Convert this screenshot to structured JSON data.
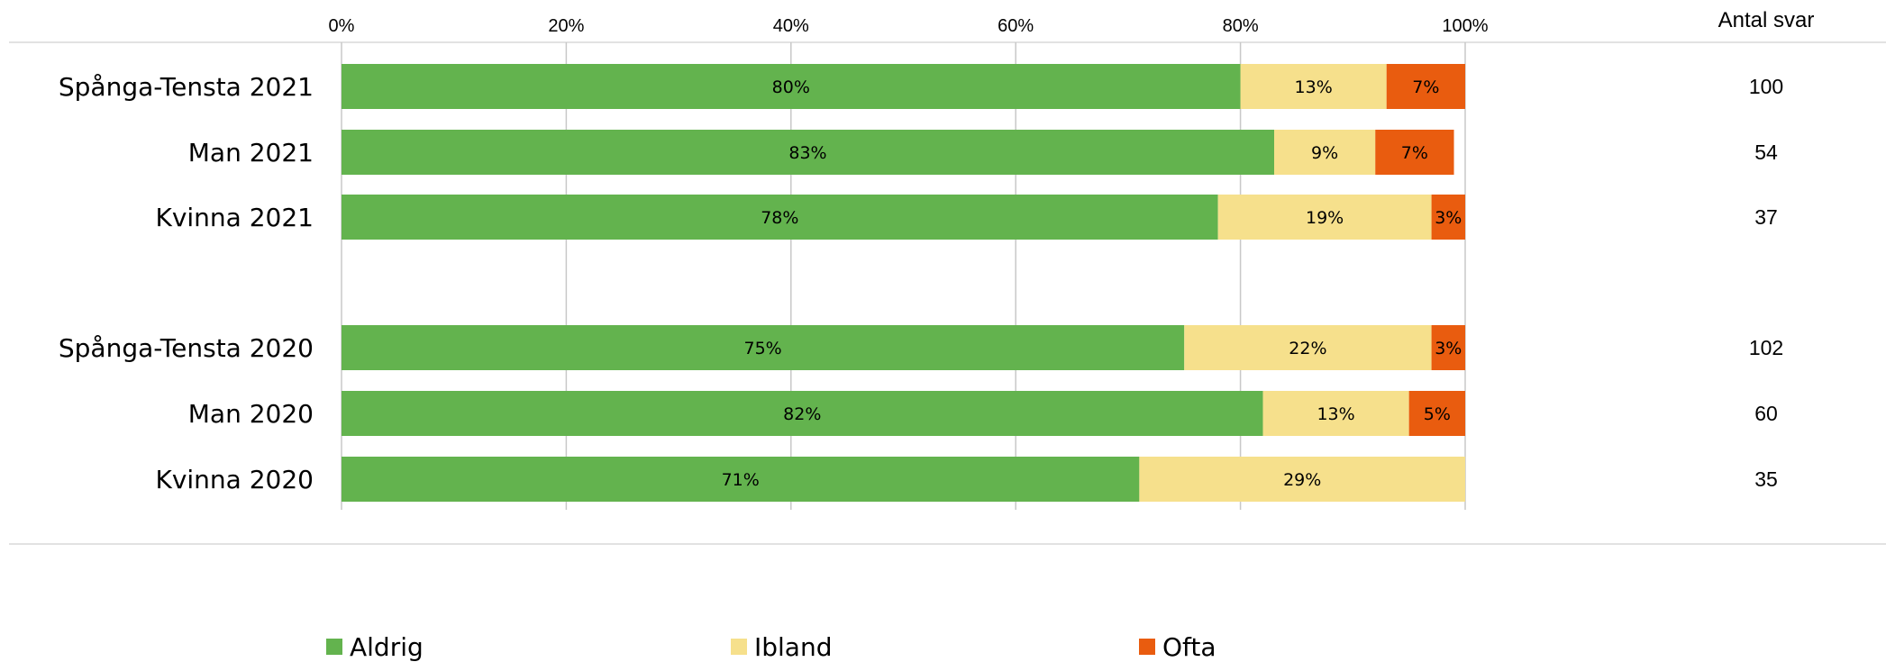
{
  "chart_data": {
    "type": "bar",
    "orientation": "horizontal",
    "stacked": "percent",
    "xlim": [
      0,
      100
    ],
    "x_ticks": [
      "0%",
      "20%",
      "40%",
      "60%",
      "80%",
      "100%"
    ],
    "grid": true,
    "legend_position": "bottom",
    "categories": [
      "Spånga-Tensta 2021",
      "Man 2021",
      "Kvinna 2021",
      "",
      "Spånga-Tensta 2020",
      "Man 2020",
      "Kvinna 2020"
    ],
    "series": [
      {
        "name": "Aldrig",
        "color": "#63b34e",
        "values": [
          80,
          83,
          78,
          null,
          75,
          82,
          71
        ]
      },
      {
        "name": "Ibland",
        "color": "#f6e08c",
        "values": [
          13,
          9,
          19,
          null,
          22,
          13,
          29
        ]
      },
      {
        "name": "Ofta",
        "color": "#e95c0f",
        "values": [
          7,
          7,
          3,
          null,
          3,
          5,
          0
        ]
      }
    ],
    "data_labels": [
      [
        "80%",
        "13%",
        "7%"
      ],
      [
        "83%",
        "9%",
        "7%"
      ],
      [
        "78%",
        "19%",
        "3%"
      ],
      null,
      [
        "75%",
        "22%",
        "3%"
      ],
      [
        "82%",
        "13%",
        "5%"
      ],
      [
        "71%",
        "29%",
        ""
      ]
    ],
    "count_header": "Antal svar",
    "counts": [
      "100",
      "54",
      "37",
      "",
      "102",
      "60",
      "35"
    ]
  }
}
